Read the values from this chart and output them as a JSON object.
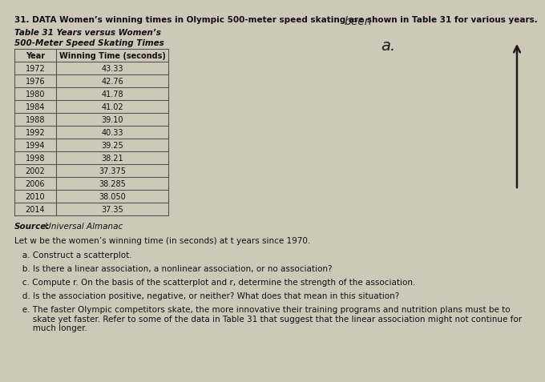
{
  "title": "31. DATA Women’s winning times in Olympic 500-meter speed skating are shown in Table 31 for various years.",
  "handwritten_been": "been",
  "table_title_line1": "Table 31 Years versus Women’s",
  "table_title_line2": "500-Meter Speed Skating Times",
  "col_headers": [
    "Year",
    "Winning Time (seconds)"
  ],
  "years": [
    1972,
    1976,
    1980,
    1984,
    1988,
    1992,
    1994,
    1998,
    2002,
    2006,
    2010,
    2014
  ],
  "times": [
    "43.33",
    "42.76",
    "41.78",
    "41.02",
    "39.10",
    "40.33",
    "39.25",
    "38.21",
    "37.375",
    "38.285",
    "38.050",
    "37.35"
  ],
  "source_bold": "Source:",
  "source_rest": " Universal Almanac",
  "var_def": "Let w be the women’s winning time (in seconds) at t years since 1970.",
  "questions": [
    "   a. Construct a scatterplot.",
    "   b. Is there a linear association, a nonlinear association, or no association?",
    "   c. Compute r. On the basis of the scatterplot and r, determine the strength of the association.",
    "   d. Is the association positive, negative, or neither? What does that mean in this situation?",
    "   e. The faster Olympic competitors skate, the more innovative their training programs and nutrition plans must be to\n       skate yet faster. Refer to some of the data in Table 31 that suggest that the linear association might not continue for\n       much longer."
  ],
  "handwritten_a": "a.",
  "bg_color": "#cec8b8",
  "text_color": "#111111",
  "table_line_color": "#555555",
  "title_fontsize": 7.5,
  "table_title_fontsize": 7.5,
  "table_data_fontsize": 7.0,
  "body_fontsize": 7.5
}
